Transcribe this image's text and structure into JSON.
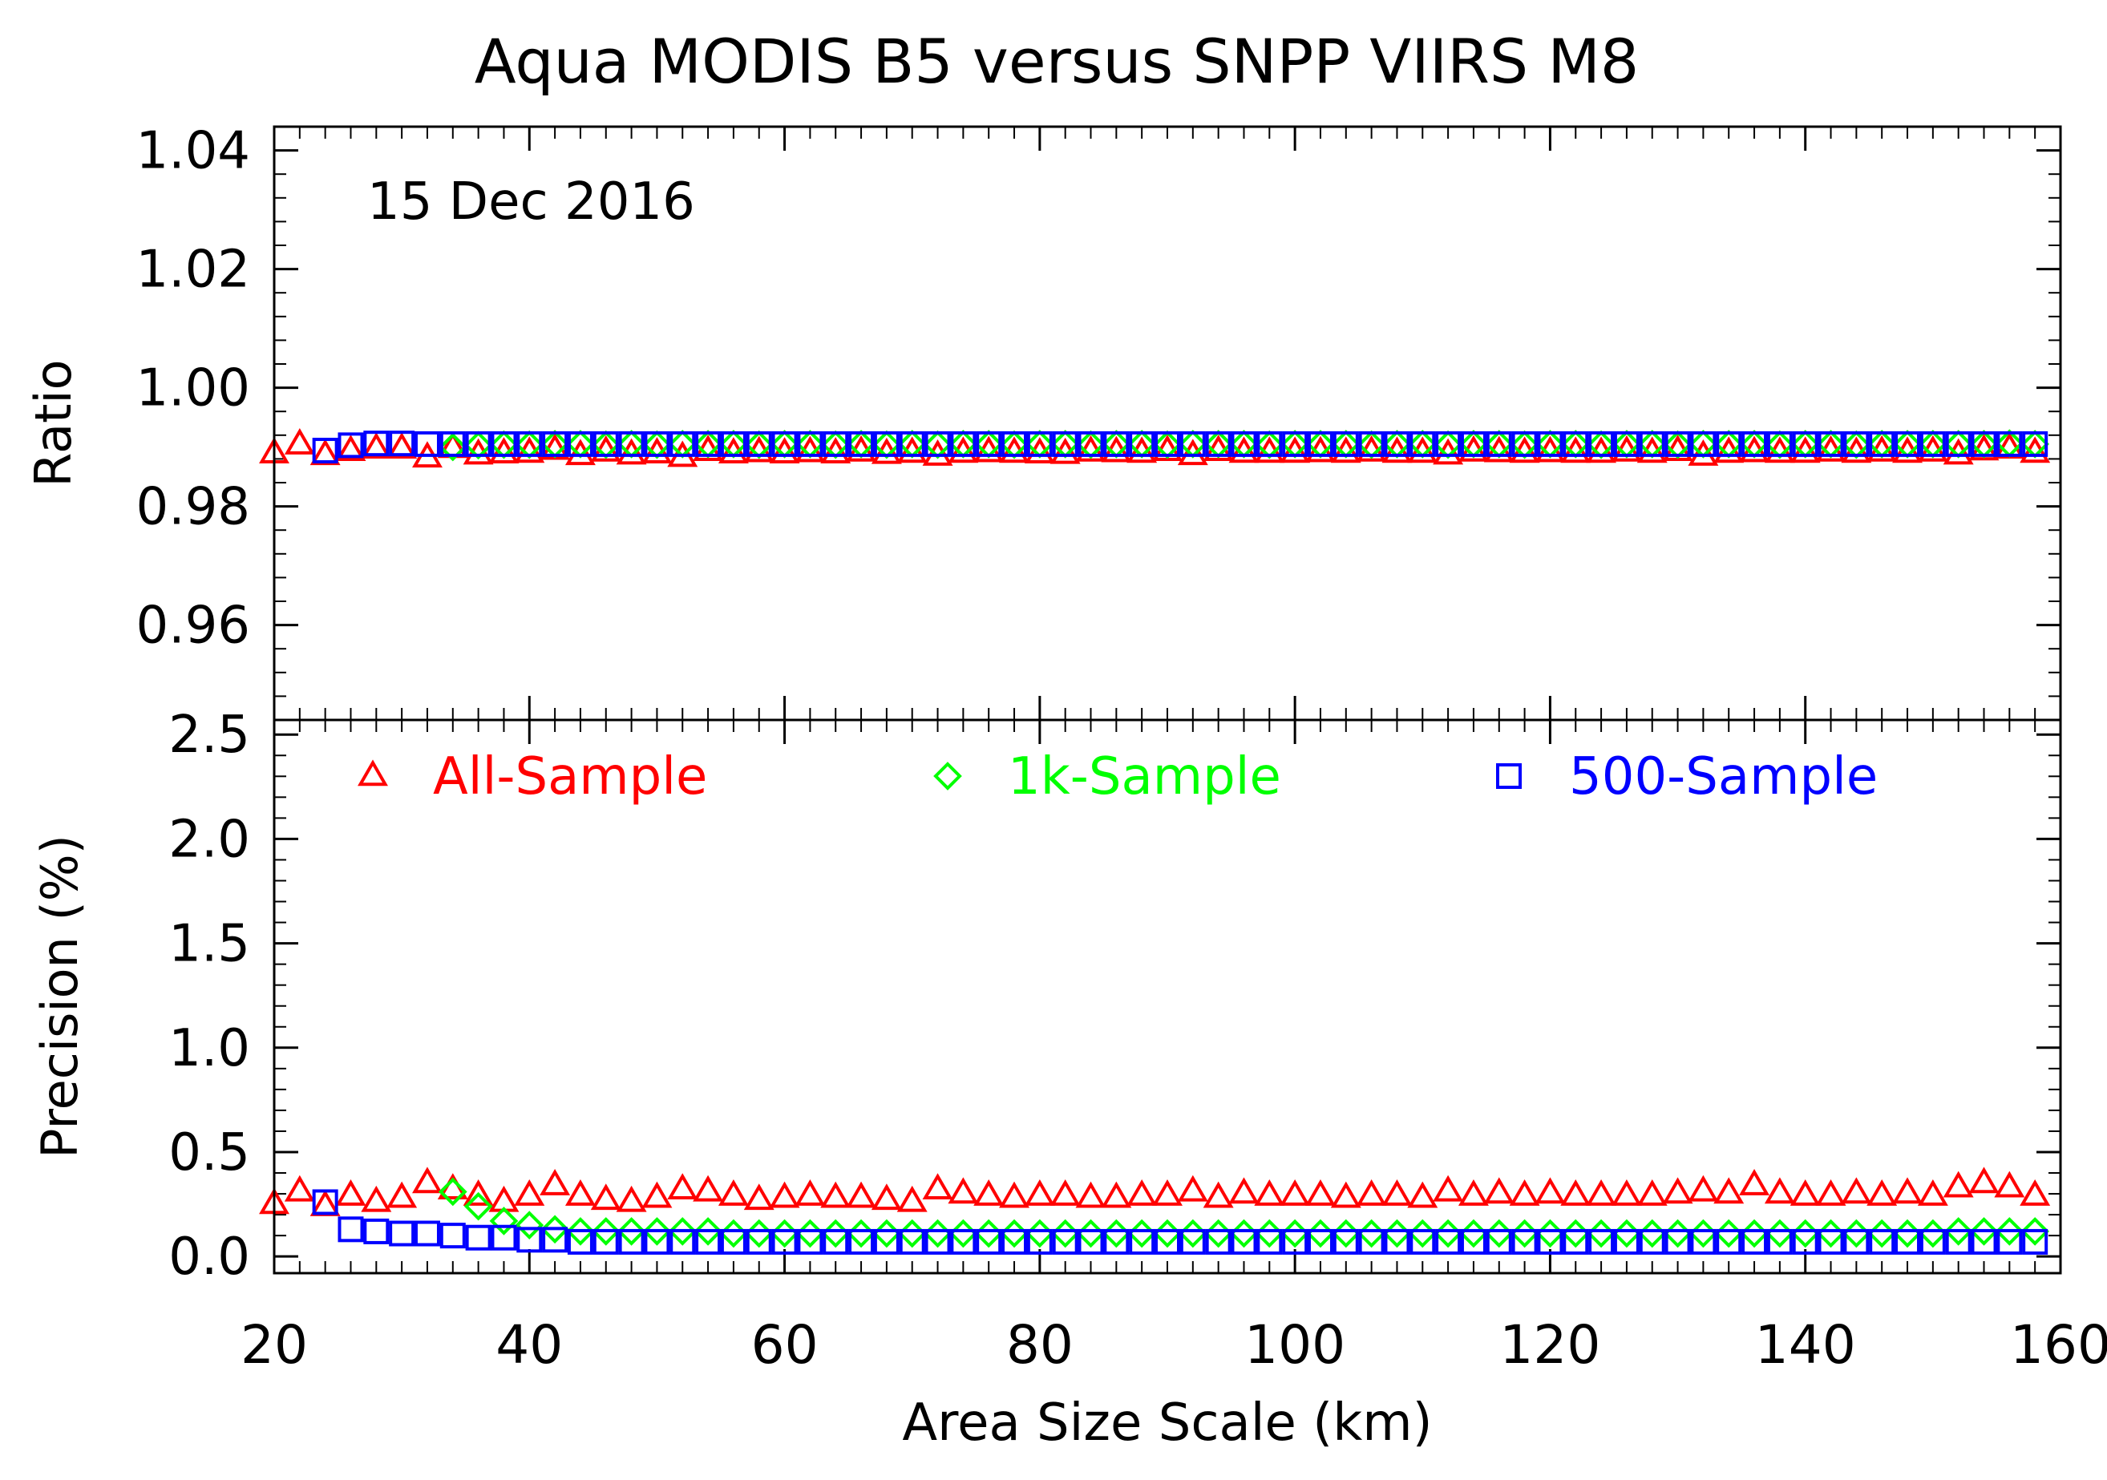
{
  "chart_data": {
    "title": "Aqua MODIS B5 versus SNPP VIIRS M8",
    "date_label": "15 Dec 2016",
    "xlabel": "Area Size Scale (km)",
    "xlim": [
      20,
      160
    ],
    "x_ticks": [
      "20",
      "40",
      "60",
      "80",
      "100",
      "120",
      "140",
      "160"
    ],
    "colors": {
      "all": "#ff0000",
      "k1": "#00ff00",
      "s500": "#0000ff",
      "axis": "#000000"
    },
    "legend": [
      {
        "key": "all",
        "label": "All-Sample",
        "marker": "triangle"
      },
      {
        "key": "k1",
        "label": "1k-Sample",
        "marker": "diamond"
      },
      {
        "key": "s500",
        "label": "500-Sample",
        "marker": "square"
      }
    ],
    "panels": [
      {
        "name": "ratio",
        "type": "scatter",
        "ylabel": "Ratio",
        "ylim": [
          0.944,
          1.044
        ],
        "y_ticks": [
          {
            "v": 0.96,
            "label": "0.96"
          },
          {
            "v": 0.98,
            "label": "0.98"
          },
          {
            "v": 1.0,
            "label": "1.00"
          },
          {
            "v": 1.02,
            "label": "1.02"
          },
          {
            "v": 1.04,
            "label": "1.04"
          }
        ],
        "series": [
          {
            "key": "all",
            "name": "All-Sample",
            "marker": "triangle",
            "x": [
              20,
              22,
              24,
              26,
              28,
              30,
              32,
              34,
              36,
              38,
              40,
              42,
              44,
              46,
              48,
              50,
              52,
              54,
              56,
              58,
              60,
              62,
              64,
              66,
              68,
              70,
              72,
              74,
              76,
              78,
              80,
              82,
              84,
              86,
              88,
              90,
              92,
              94,
              96,
              98,
              100,
              102,
              104,
              106,
              108,
              110,
              112,
              114,
              116,
              118,
              120,
              122,
              124,
              126,
              128,
              130,
              132,
              134,
              136,
              138,
              140,
              142,
              144,
              146,
              148,
              150,
              152,
              154,
              156,
              158
            ],
            "y": [
              0.9889,
              0.9904,
              0.9886,
              0.9893,
              0.9897,
              0.9897,
              0.9882,
              0.9898,
              0.9887,
              0.9889,
              0.989,
              0.9895,
              0.9886,
              0.9892,
              0.9887,
              0.9889,
              0.9883,
              0.9893,
              0.9889,
              0.9891,
              0.9889,
              0.9891,
              0.9889,
              0.9892,
              0.9888,
              0.989,
              0.9885,
              0.989,
              0.9891,
              0.989,
              0.9889,
              0.9888,
              0.9892,
              0.9891,
              0.989,
              0.9893,
              0.9886,
              0.9893,
              0.989,
              0.989,
              0.989,
              0.9891,
              0.989,
              0.9892,
              0.989,
              0.989,
              0.9887,
              0.9892,
              0.9891,
              0.989,
              0.9891,
              0.989,
              0.989,
              0.9892,
              0.989,
              0.9893,
              0.9885,
              0.989,
              0.9891,
              0.989,
              0.989,
              0.9892,
              0.989,
              0.9892,
              0.989,
              0.9892,
              0.9887,
              0.9894,
              0.9897,
              0.989
            ]
          },
          {
            "key": "k1",
            "name": "1k-Sample",
            "marker": "diamond",
            "x": [
              34,
              36,
              38,
              40,
              42,
              44,
              46,
              48,
              50,
              52,
              54,
              56,
              58,
              60,
              62,
              64,
              66,
              68,
              70,
              72,
              74,
              76,
              78,
              80,
              82,
              84,
              86,
              88,
              90,
              92,
              94,
              96,
              98,
              100,
              102,
              104,
              106,
              108,
              110,
              112,
              114,
              116,
              118,
              120,
              122,
              124,
              126,
              128,
              130,
              132,
              134,
              136,
              138,
              140,
              142,
              144,
              146,
              148,
              150,
              152,
              154,
              156,
              158
            ],
            "y": [
              0.99,
              0.9903,
              0.9904,
              0.9904,
              0.9905,
              0.9905,
              0.9904,
              0.9905,
              0.9904,
              0.9905,
              0.9905,
              0.9905,
              0.9904,
              0.9905,
              0.9905,
              0.9904,
              0.9905,
              0.9904,
              0.9905,
              0.9904,
              0.9905,
              0.9905,
              0.9904,
              0.9905,
              0.9905,
              0.9904,
              0.9905,
              0.9905,
              0.9904,
              0.9905,
              0.9905,
              0.9905,
              0.9904,
              0.9905,
              0.9905,
              0.9905,
              0.9904,
              0.9905,
              0.9905,
              0.9904,
              0.9905,
              0.9905,
              0.9904,
              0.9905,
              0.9905,
              0.9904,
              0.9905,
              0.9905,
              0.9904,
              0.9905,
              0.9905,
              0.9905,
              0.9904,
              0.9905,
              0.9905,
              0.9904,
              0.9905,
              0.9905,
              0.9905,
              0.9905,
              0.9905,
              0.9906,
              0.9905
            ]
          },
          {
            "key": "s500",
            "name": "500-Sample",
            "marker": "square",
            "x": [
              24,
              26,
              28,
              30,
              32,
              34,
              36,
              38,
              40,
              42,
              44,
              46,
              48,
              50,
              52,
              54,
              56,
              58,
              60,
              62,
              64,
              66,
              68,
              70,
              72,
              74,
              76,
              78,
              80,
              82,
              84,
              86,
              88,
              90,
              92,
              94,
              96,
              98,
              100,
              102,
              104,
              106,
              108,
              110,
              112,
              114,
              116,
              118,
              120,
              122,
              124,
              126,
              128,
              130,
              132,
              134,
              136,
              138,
              140,
              142,
              144,
              146,
              148,
              150,
              152,
              154,
              156,
              158
            ],
            "y": [
              0.9894,
              0.9903,
              0.9906,
              0.9906,
              0.9905,
              0.9905,
              0.9905,
              0.9905,
              0.9905,
              0.9905,
              0.9905,
              0.9905,
              0.9905,
              0.9905,
              0.9905,
              0.9905,
              0.9905,
              0.9905,
              0.9905,
              0.9905,
              0.9905,
              0.9905,
              0.9905,
              0.9905,
              0.9905,
              0.9905,
              0.9905,
              0.9905,
              0.9905,
              0.9905,
              0.9905,
              0.9905,
              0.9905,
              0.9905,
              0.9905,
              0.9905,
              0.9905,
              0.9905,
              0.9905,
              0.9905,
              0.9905,
              0.9905,
              0.9905,
              0.9905,
              0.9905,
              0.9905,
              0.9905,
              0.9905,
              0.9905,
              0.9905,
              0.9905,
              0.9905,
              0.9905,
              0.9905,
              0.9905,
              0.9905,
              0.9905,
              0.9905,
              0.9905,
              0.9905,
              0.9905,
              0.9905,
              0.9905,
              0.9905,
              0.9905,
              0.9905,
              0.9905,
              0.9905
            ]
          }
        ]
      },
      {
        "name": "precision",
        "type": "scatter",
        "ylabel": "Precision (%)",
        "ylim": [
          -0.08,
          2.57
        ],
        "y_ticks": [
          {
            "v": 0.0,
            "label": "0.0"
          },
          {
            "v": 0.5,
            "label": "0.5"
          },
          {
            "v": 1.0,
            "label": "1.0"
          },
          {
            "v": 1.5,
            "label": "1.5"
          },
          {
            "v": 2.0,
            "label": "2.0"
          },
          {
            "v": 2.5,
            "label": "2.5"
          }
        ],
        "series": [
          {
            "key": "all",
            "name": "All-Sample",
            "marker": "triangle",
            "x": [
              20,
              22,
              24,
              26,
              28,
              30,
              32,
              34,
              36,
              38,
              40,
              42,
              44,
              46,
              48,
              50,
              52,
              54,
              56,
              58,
              60,
              62,
              64,
              66,
              68,
              70,
              72,
              74,
              76,
              78,
              80,
              82,
              84,
              86,
              88,
              90,
              92,
              94,
              96,
              98,
              100,
              102,
              104,
              106,
              108,
              110,
              112,
              114,
              116,
              118,
              120,
              122,
              124,
              126,
              128,
              130,
              132,
              134,
              136,
              138,
              140,
              142,
              144,
              146,
              148,
              150,
              152,
              154,
              156,
              158
            ],
            "y": [
              0.25,
              0.31,
              0.24,
              0.29,
              0.26,
              0.28,
              0.35,
              0.32,
              0.29,
              0.26,
              0.29,
              0.34,
              0.29,
              0.27,
              0.26,
              0.28,
              0.32,
              0.31,
              0.29,
              0.27,
              0.28,
              0.29,
              0.28,
              0.28,
              0.27,
              0.26,
              0.32,
              0.3,
              0.29,
              0.28,
              0.29,
              0.29,
              0.28,
              0.28,
              0.29,
              0.29,
              0.31,
              0.28,
              0.3,
              0.29,
              0.29,
              0.29,
              0.28,
              0.29,
              0.29,
              0.28,
              0.31,
              0.29,
              0.3,
              0.29,
              0.3,
              0.29,
              0.29,
              0.29,
              0.29,
              0.3,
              0.31,
              0.3,
              0.34,
              0.3,
              0.29,
              0.29,
              0.3,
              0.29,
              0.3,
              0.29,
              0.33,
              0.35,
              0.33,
              0.29
            ]
          },
          {
            "key": "k1",
            "name": "1k-Sample",
            "marker": "diamond",
            "x": [
              34,
              36,
              38,
              40,
              42,
              44,
              46,
              48,
              50,
              52,
              54,
              56,
              58,
              60,
              62,
              64,
              66,
              68,
              70,
              72,
              74,
              76,
              78,
              80,
              82,
              84,
              86,
              88,
              90,
              92,
              94,
              96,
              98,
              100,
              102,
              104,
              106,
              108,
              110,
              112,
              114,
              116,
              118,
              120,
              122,
              124,
              126,
              128,
              130,
              132,
              134,
              136,
              138,
              140,
              142,
              144,
              146,
              148,
              150,
              152,
              154,
              156,
              158
            ],
            "y": [
              0.31,
              0.24,
              0.17,
              0.15,
              0.13,
              0.12,
              0.12,
              0.12,
              0.12,
              0.12,
              0.12,
              0.11,
              0.11,
              0.11,
              0.11,
              0.11,
              0.11,
              0.11,
              0.11,
              0.11,
              0.11,
              0.11,
              0.11,
              0.11,
              0.11,
              0.11,
              0.11,
              0.11,
              0.11,
              0.11,
              0.11,
              0.11,
              0.11,
              0.11,
              0.11,
              0.11,
              0.11,
              0.11,
              0.11,
              0.11,
              0.11,
              0.11,
              0.11,
              0.11,
              0.11,
              0.11,
              0.11,
              0.11,
              0.11,
              0.11,
              0.11,
              0.11,
              0.11,
              0.11,
              0.11,
              0.11,
              0.11,
              0.11,
              0.11,
              0.12,
              0.12,
              0.12,
              0.12
            ]
          },
          {
            "key": "s500",
            "name": "500-Sample",
            "marker": "square",
            "x": [
              24,
              26,
              28,
              30,
              32,
              34,
              36,
              38,
              40,
              42,
              44,
              46,
              48,
              50,
              52,
              54,
              56,
              58,
              60,
              62,
              64,
              66,
              68,
              70,
              72,
              74,
              76,
              78,
              80,
              82,
              84,
              86,
              88,
              90,
              92,
              94,
              96,
              98,
              100,
              102,
              104,
              106,
              108,
              110,
              112,
              114,
              116,
              118,
              120,
              122,
              124,
              126,
              128,
              130,
              132,
              134,
              136,
              138,
              140,
              142,
              144,
              146,
              148,
              150,
              152,
              154,
              156,
              158
            ],
            "y": [
              0.26,
              0.13,
              0.12,
              0.11,
              0.11,
              0.1,
              0.09,
              0.09,
              0.08,
              0.08,
              0.07,
              0.07,
              0.07,
              0.07,
              0.07,
              0.07,
              0.07,
              0.07,
              0.07,
              0.07,
              0.07,
              0.07,
              0.07,
              0.07,
              0.07,
              0.07,
              0.07,
              0.07,
              0.07,
              0.07,
              0.07,
              0.07,
              0.07,
              0.07,
              0.07,
              0.07,
              0.07,
              0.07,
              0.07,
              0.07,
              0.07,
              0.07,
              0.07,
              0.07,
              0.07,
              0.07,
              0.07,
              0.07,
              0.07,
              0.07,
              0.07,
              0.07,
              0.07,
              0.07,
              0.07,
              0.07,
              0.07,
              0.07,
              0.07,
              0.07,
              0.07,
              0.07,
              0.07,
              0.07,
              0.07,
              0.07,
              0.07,
              0.07
            ]
          }
        ]
      }
    ]
  }
}
